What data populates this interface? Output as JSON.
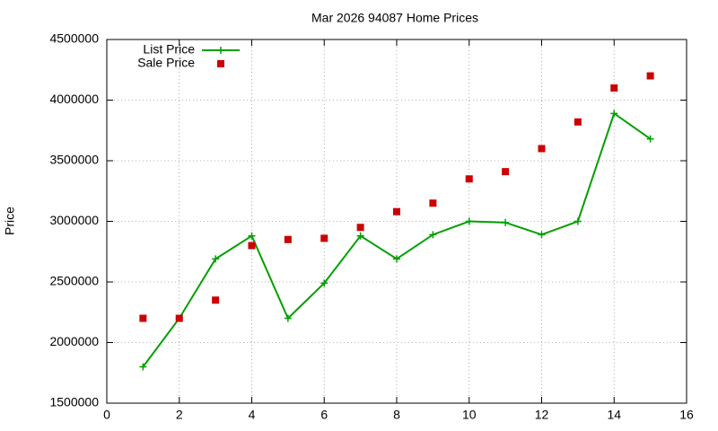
{
  "chart_data": {
    "type": "line",
    "title": "Mar 2026 94087 Home Prices",
    "y_label": "Price",
    "x": [
      1,
      2,
      3,
      4,
      5,
      6,
      7,
      8,
      9,
      10,
      11,
      12,
      13,
      14,
      15
    ],
    "series": [
      {
        "name": "List Price",
        "color": "#00a000",
        "style": "linespoints",
        "values": [
          1800000,
          2200000,
          2690000,
          2880000,
          2200000,
          2490000,
          2880000,
          2690000,
          2890000,
          3000000,
          2990000,
          2890000,
          3000000,
          3890000,
          3680000
        ]
      },
      {
        "name": "Sale Price",
        "color": "#cc0000",
        "style": "points",
        "values": [
          2200000,
          2200000,
          2350000,
          2800000,
          2850000,
          2860000,
          2950000,
          3080000,
          3150000,
          3350000,
          3410000,
          3600000,
          3820000,
          4100000,
          4200000
        ]
      }
    ],
    "xlim": [
      0,
      16
    ],
    "xticks": [
      0,
      2,
      4,
      6,
      8,
      10,
      12,
      14,
      16
    ],
    "ylim": [
      1500000,
      4500000
    ],
    "yticks": [
      1500000,
      2000000,
      2500000,
      3000000,
      3500000,
      4000000,
      4500000
    ],
    "grid": true,
    "legend": "top-left"
  }
}
